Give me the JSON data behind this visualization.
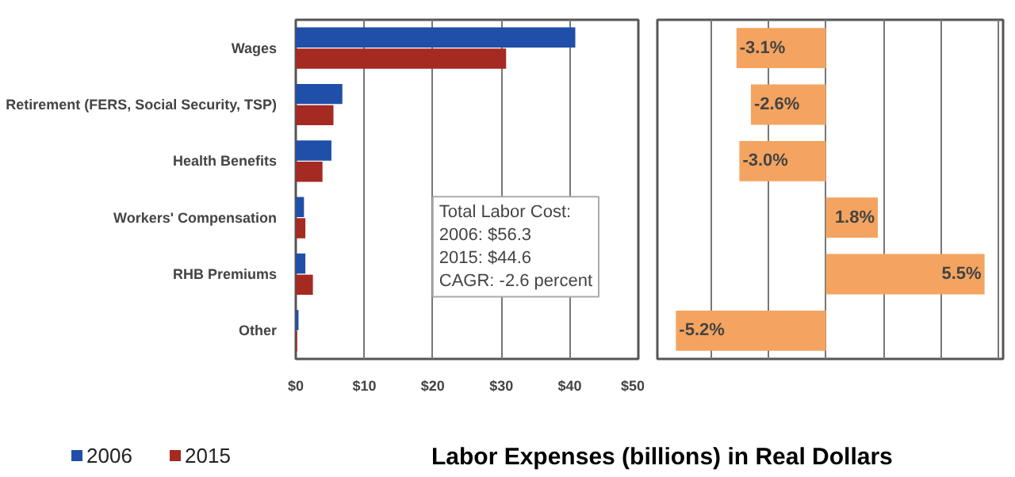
{
  "chart_data": [
    {
      "type": "bar",
      "orientation": "horizontal",
      "categories": [
        "Wages",
        "Retirement (FERS, Social Security, TSP)",
        "Health Benefits",
        "Workers' Compensation",
        "RHB Premiums",
        "Other"
      ],
      "series": [
        {
          "name": "2006",
          "color": "#1f4fa8",
          "values": [
            40.8,
            6.8,
            5.2,
            1.2,
            1.4,
            0.4
          ]
        },
        {
          "name": "2015",
          "color": "#a52a22",
          "values": [
            30.7,
            5.5,
            3.9,
            1.4,
            2.5,
            0.2
          ]
        }
      ],
      "xlim": [
        0,
        50
      ],
      "xticks": [
        {
          "value": 0,
          "label": "$0"
        },
        {
          "value": 10,
          "label": "$10"
        },
        {
          "value": 20,
          "label": "$20"
        },
        {
          "value": 30,
          "label": "$30"
        },
        {
          "value": 40,
          "label": "$40"
        },
        {
          "value": 50,
          "label": "$50"
        }
      ],
      "grid": "x",
      "legend": "bottom left",
      "annotations": [
        "Total Labor Cost:\n2006: $56.3\n2015: $44.6\nCAGR: -2.6 percent",
        "Labor Expenses (billions) in Real Dollars"
      ]
    },
    {
      "type": "bar",
      "orientation": "horizontal",
      "categories": [
        null,
        null,
        null,
        null,
        null,
        null
      ],
      "values": [
        -3.1,
        -2.6,
        -3.0,
        1.8,
        5.5,
        -5.2
      ],
      "color": "#f4a460",
      "value_labels": [
        "-3.1%",
        "-2.6%",
        "-3.0%",
        "1.8%",
        "5.5%",
        "-5.2%"
      ],
      "grid": "x",
      "tick_labels": false
    }
  ]
}
